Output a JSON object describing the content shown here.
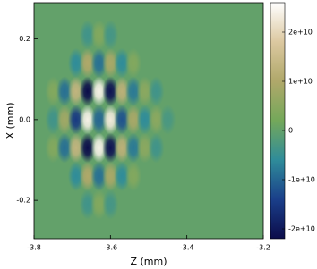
{
  "chart_data": {
    "type": "heatmap",
    "x_label": "Z (mm)",
    "y_label": "X (mm)",
    "xlim": [
      -3.8,
      -3.2
    ],
    "ylim": [
      -0.295,
      0.29
    ],
    "xticks": [
      -3.8,
      -3.6,
      -3.4,
      -3.2
    ],
    "yticks": [
      0.2,
      {
        "value": 0,
        "label": "0.0"
      },
      -0.2
    ],
    "clim": [
      -22000000000.0,
      26000000000.0
    ],
    "cticks": [
      {
        "value": 20000000000.0,
        "label": "2e+10"
      },
      {
        "value": 10000000000.0,
        "label": "1e+10"
      },
      0,
      {
        "value": -10000000000.0,
        "label": "-1e+10"
      },
      {
        "value": -20000000000.0,
        "label": "-2e+10"
      }
    ],
    "colormap": [
      "#0c0c4a",
      "#1a3f8a",
      "#2f8c9a",
      "#74a85a",
      "#b0a86a",
      "#dcc8a0",
      "#ffffff"
    ],
    "x": [
      -3.75,
      -3.72,
      -3.69,
      -3.66,
      -3.63,
      -3.6,
      -3.57,
      -3.54,
      -3.51,
      -3.48,
      -3.45,
      -3.75,
      -3.72,
      -3.69,
      -3.66,
      -3.63,
      -3.6,
      -3.57,
      -3.54,
      -3.51,
      -3.48,
      -3.75,
      -3.72,
      -3.69,
      -3.66,
      -3.63,
      -3.6,
      -3.57,
      -3.54,
      -3.51,
      -3.48,
      -3.69,
      -3.66,
      -3.63,
      -3.6,
      -3.57,
      -3.54,
      -3.69,
      -3.66,
      -3.63,
      -3.6,
      -3.57,
      -3.54,
      -3.66,
      -3.63,
      -3.6,
      -3.66,
      -3.63,
      -3.6
    ],
    "y": [
      0,
      0,
      0,
      0,
      0,
      0,
      0,
      0,
      0,
      0,
      0,
      0.07,
      0.07,
      0.07,
      0.07,
      0.07,
      0.07,
      0.07,
      0.07,
      0.07,
      0.07,
      -0.07,
      -0.07,
      -0.07,
      -0.07,
      -0.07,
      -0.07,
      -0.07,
      -0.07,
      -0.07,
      -0.07,
      0.14,
      0.14,
      0.14,
      0.14,
      0.14,
      0.14,
      -0.14,
      -0.14,
      -0.14,
      -0.14,
      -0.14,
      -0.14,
      0.21,
      0.21,
      0.21,
      -0.21,
      -0.21,
      -0.21
    ],
    "values": [
      -4000000000.0,
      8000000000.0,
      -15000000000.0,
      24000000000.0,
      -10000000000.0,
      23000000000.0,
      -12000000000.0,
      9000000000.0,
      -6000000000.0,
      5000000000.0,
      -3000000000.0,
      4000000000.0,
      -9000000000.0,
      13000000000.0,
      -22000000000.0,
      24000000000.0,
      -21000000000.0,
      12000000000.0,
      -8000000000.0,
      5000000000.0,
      -4000000000.0,
      4000000000.0,
      -9000000000.0,
      13000000000.0,
      -22000000000.0,
      24000000000.0,
      -21000000000.0,
      12000000000.0,
      -8000000000.0,
      5000000000.0,
      -4000000000.0,
      -6000000000.0,
      10000000000.0,
      -9000000000.0,
      9000000000.0,
      -6000000000.0,
      4000000000.0,
      -6000000000.0,
      10000000000.0,
      -9000000000.0,
      9000000000.0,
      -6000000000.0,
      4000000000.0,
      -4000000000.0,
      4000000000.0,
      -3500000000.0,
      -4000000000.0,
      4000000000.0,
      -3500000000.0
    ]
  }
}
